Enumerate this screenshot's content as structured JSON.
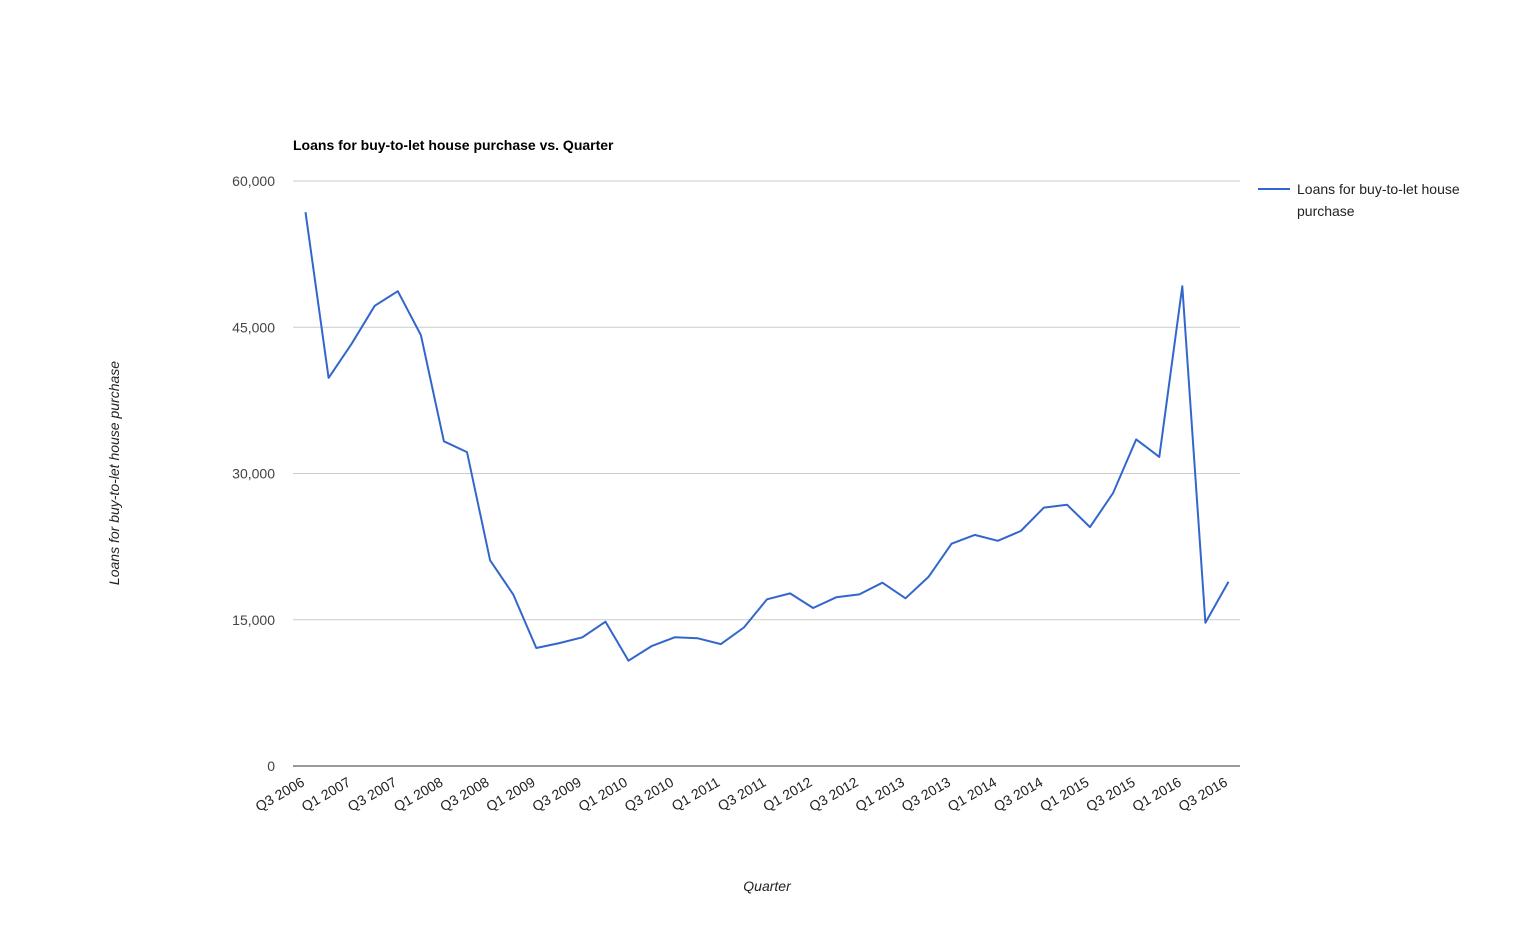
{
  "chart_data": {
    "type": "line",
    "title": "Loans for buy-to-let house purchase vs. Quarter",
    "xlabel": "Quarter",
    "ylabel": "Loans for buy-to-let house purchase",
    "ylim": [
      0,
      60000
    ],
    "yticks": [
      "0",
      "15,000",
      "30,000",
      "45,000",
      "60,000"
    ],
    "ytick_values": [
      0,
      15000,
      30000,
      45000,
      60000
    ],
    "grid": true,
    "legend_position": "right",
    "x": [
      "Q3 2006",
      "Q4 2006",
      "Q1 2007",
      "Q2 2007",
      "Q3 2007",
      "Q4 2007",
      "Q1 2008",
      "Q2 2008",
      "Q3 2008",
      "Q4 2008",
      "Q1 2009",
      "Q2 2009",
      "Q3 2009",
      "Q4 2009",
      "Q1 2010",
      "Q2 2010",
      "Q3 2010",
      "Q4 2010",
      "Q1 2011",
      "Q2 2011",
      "Q3 2011",
      "Q4 2011",
      "Q1 2012",
      "Q2 2012",
      "Q3 2012",
      "Q4 2012",
      "Q1 2013",
      "Q2 2013",
      "Q3 2013",
      "Q4 2013",
      "Q1 2014",
      "Q2 2014",
      "Q3 2014",
      "Q4 2014",
      "Q1 2015",
      "Q2 2015",
      "Q3 2015",
      "Q4 2015",
      "Q1 2016",
      "Q2 2016",
      "Q3 2016"
    ],
    "xtick_labels": [
      "Q3 2006",
      "Q1 2007",
      "Q3 2007",
      "Q1 2008",
      "Q3 2008",
      "Q1 2009",
      "Q3 2009",
      "Q1 2010",
      "Q3 2010",
      "Q1 2011",
      "Q3 2011",
      "Q1 2012",
      "Q3 2012",
      "Q1 2013",
      "Q3 2013",
      "Q1 2014",
      "Q3 2014",
      "Q1 2015",
      "Q3 2015",
      "Q1 2016",
      "Q3 2016"
    ],
    "series": [
      {
        "name": "Loans for buy-to-let house purchase",
        "color": "#3366cc",
        "values": [
          56800,
          39800,
          43300,
          47200,
          48700,
          44200,
          33300,
          32200,
          21100,
          17600,
          12100,
          12600,
          13200,
          14800,
          10800,
          12300,
          13200,
          13100,
          12500,
          14200,
          17100,
          17700,
          16200,
          17300,
          17600,
          18800,
          17200,
          19400,
          22800,
          23700,
          23100,
          24100,
          26500,
          26800,
          24500,
          28000,
          33500,
          31700,
          49200,
          14700,
          18900
        ]
      }
    ]
  }
}
